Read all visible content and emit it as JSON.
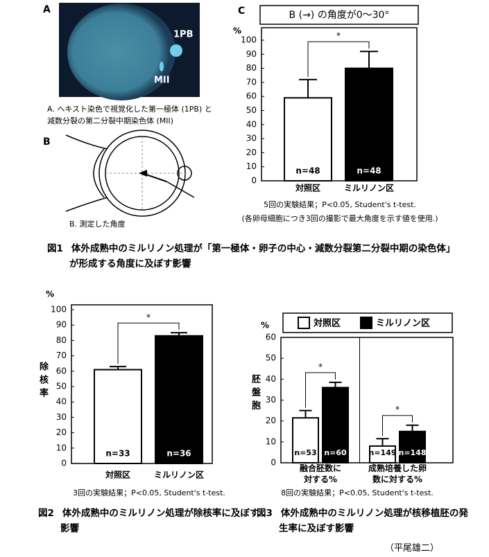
{
  "panels": {
    "A": {
      "label": "A",
      "labels": [
        "1PB",
        "MII"
      ],
      "caption": "A. ヘキスト染色で視覚化した第一極体 (1PB) と減数分裂の第二分裂中期染色体 (MII)"
    },
    "B": {
      "label": "B",
      "caption": "B. 測定した角度"
    },
    "C": {
      "label": "C"
    }
  },
  "chart_data": [
    {
      "type": "bar",
      "title": "B (→) の角度が0～30°",
      "y_unit": "%",
      "categories": [
        "対照区",
        "ミルリノン区"
      ],
      "values": [
        59,
        80
      ],
      "errors": [
        13,
        12
      ],
      "colors": [
        "#ffffff",
        "#000000"
      ],
      "n_labels": [
        "n=48",
        "n=48"
      ],
      "significance": "*",
      "ylim": [
        0,
        100
      ],
      "yticks": [
        0,
        10,
        20,
        30,
        40,
        50,
        60,
        70,
        80,
        90,
        100
      ],
      "notes": [
        "5回の実験結果；P<0.05, Student's t-test.",
        "(各卵母細胞につき3回の撮影で最大角度を示す値を使用.)"
      ]
    },
    {
      "type": "bar",
      "y_unit": "%",
      "ylabel": "除核率",
      "categories": [
        "対照区",
        "ミルリノン区"
      ],
      "values": [
        61,
        83
      ],
      "errors": [
        2,
        2
      ],
      "colors": [
        "#ffffff",
        "#000000"
      ],
      "n_labels": [
        "n=33",
        "n=36"
      ],
      "significance": "*",
      "ylim": [
        0,
        100
      ],
      "yticks": [
        0,
        10,
        20,
        30,
        40,
        50,
        60,
        70,
        80,
        90,
        100
      ],
      "notes": [
        "3回の実験結果；P<0.05, Student's t-test."
      ]
    },
    {
      "type": "grouped_bar",
      "y_unit": "%",
      "ylabel": "胚盤胞",
      "categories": [
        "融合胚数に対する%",
        "成熟培養した卵数に対する%"
      ],
      "series": [
        {
          "name": "対照区",
          "color": "#ffffff",
          "values": [
            21.5,
            8
          ],
          "errors": [
            3.5,
            3.5
          ],
          "n_labels": [
            "n=53",
            "n=149"
          ]
        },
        {
          "name": "ミルリノン区",
          "color": "#000000",
          "values": [
            36,
            15
          ],
          "errors": [
            2.5,
            3
          ],
          "n_labels": [
            "n=60",
            "n=148"
          ]
        }
      ],
      "significance": [
        "*",
        "*"
      ],
      "ylim": [
        0,
        60
      ],
      "yticks": [
        0,
        10,
        20,
        30,
        40,
        50,
        60
      ],
      "notes": [
        "8回の実験結果；P<0.05, Student's t-test."
      ]
    }
  ],
  "figures": [
    {
      "label": "図1",
      "text": "体外成熟中のミルリノン処理が「第一極体・卵子の中心・減数分裂第二分裂中期の染色体」が形成する角度に及ぼす影響"
    },
    {
      "label": "図2",
      "text": "体外成熟中のミルリノン処理が除核率に及ぼす影響"
    },
    {
      "label": "図3",
      "text": "体外成熟中のミルリノン処理が核移植胚の発生率に及ぼす影響"
    }
  ],
  "author": "（平尾雄二）"
}
